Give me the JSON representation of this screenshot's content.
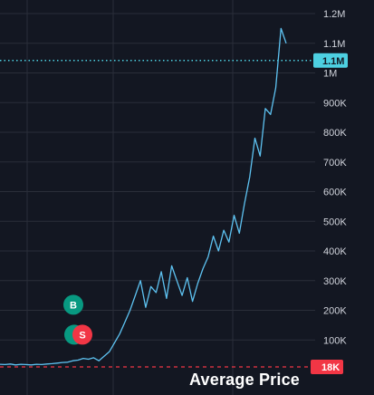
{
  "chart_data": {
    "type": "line",
    "title": "",
    "xlabel": "",
    "ylabel": "",
    "y_unit": "USD",
    "y_scale": "linear",
    "ylim": [
      0,
      1200000
    ],
    "y_ticks": [
      "1.2M",
      "1.1M",
      "1M",
      "900K",
      "800K",
      "700K",
      "600K",
      "500K",
      "400K",
      "300K",
      "200K",
      "100K"
    ],
    "y_tick_values": [
      1200000,
      1100000,
      1000000,
      900000,
      800000,
      700000,
      600000,
      500000,
      400000,
      300000,
      200000,
      100000
    ],
    "grid": true,
    "legend": "none",
    "series": [
      {
        "values": [
          18000,
          17000,
          19000,
          16000,
          18000,
          17000,
          16000,
          18000,
          17000,
          19000,
          20000,
          22000,
          24000,
          25000,
          30000,
          32000,
          38000,
          35000,
          40000,
          30000,
          45000,
          60000,
          90000,
          120000,
          160000,
          200000,
          250000,
          300000,
          210000,
          280000,
          260000,
          330000,
          240000,
          350000,
          300000,
          250000,
          310000,
          230000,
          290000,
          340000,
          380000,
          450000,
          400000,
          470000,
          430000,
          520000,
          460000,
          560000,
          650000,
          780000,
          720000,
          880000,
          860000,
          950000,
          1150000,
          1100000
        ]
      }
    ],
    "price_line": {
      "label": "1.1M",
      "value": 1100000
    },
    "average_line": {
      "label": "18K",
      "value": 18000
    },
    "markers": [
      {
        "label": "B",
        "value": 240000,
        "color": "#089981"
      },
      {
        "label": "S",
        "value": 130000,
        "color": "#f23645"
      }
    ]
  },
  "caption": "Average Price",
  "colors": {
    "background": "#131722",
    "grid": "#2a2e39",
    "line": "#5ec3f2",
    "price_line": "#4dd0e1",
    "average_line": "#f23645",
    "tick_text": "#d1d4dc"
  }
}
